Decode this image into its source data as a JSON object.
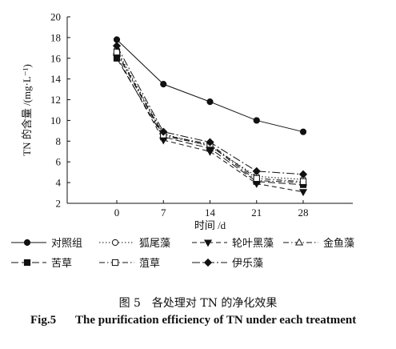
{
  "chart_data": {
    "type": "line",
    "title": "",
    "xlabel": "时间 /d",
    "ylabel": "TN 的含量 /(mg·L⁻¹)",
    "x": [
      0,
      7,
      14,
      21,
      28
    ],
    "xticks": [
      "0",
      "7",
      "14",
      "21",
      "28"
    ],
    "yticks": [
      "2",
      "4",
      "6",
      "8",
      "10",
      "12",
      "14",
      "16",
      "18",
      "20"
    ],
    "ylim": [
      2,
      20
    ],
    "grid": false,
    "legend_position": "bottom",
    "series": [
      {
        "name": "对照组",
        "values": [
          17.8,
          13.5,
          11.8,
          10.0,
          8.9
        ],
        "marker": "filled-circle",
        "dash": "solid"
      },
      {
        "name": "狐尾藻",
        "values": [
          16.8,
          8.7,
          7.5,
          4.6,
          4.3
        ],
        "marker": "open-circle",
        "dash": "dot"
      },
      {
        "name": "轮叶黑藻",
        "values": [
          16.2,
          8.1,
          7.0,
          3.9,
          3.1
        ],
        "marker": "filled-triangle-down",
        "dash": "dash"
      },
      {
        "name": "金鱼藻",
        "values": [
          16.5,
          8.5,
          7.6,
          4.2,
          4.0
        ],
        "marker": "open-triangle-up",
        "dash": "dashdot"
      },
      {
        "name": "苦草",
        "values": [
          16.0,
          8.4,
          7.3,
          4.1,
          3.8
        ],
        "marker": "filled-square",
        "dash": "longdash"
      },
      {
        "name": "菹草",
        "values": [
          16.6,
          8.6,
          7.7,
          4.4,
          4.1
        ],
        "marker": "open-square",
        "dash": "dashdot"
      },
      {
        "name": "伊乐藻",
        "values": [
          17.2,
          8.9,
          7.9,
          5.1,
          4.8
        ],
        "marker": "filled-diamond",
        "dash": "longdashdot"
      }
    ]
  },
  "captions": {
    "cn": "图 5　各处理对 TN 的净化效果",
    "en_label": "Fig.5",
    "en_text": "The purification efficiency of TN under each treatment"
  }
}
